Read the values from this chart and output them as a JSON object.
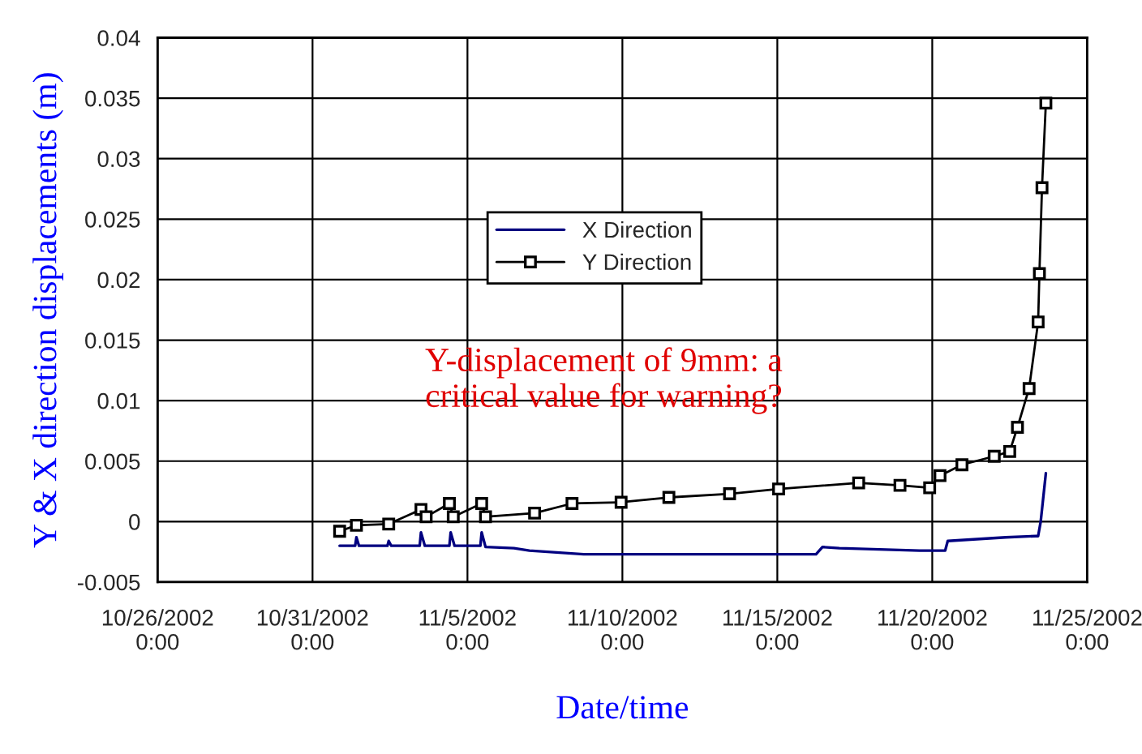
{
  "chart_data": {
    "type": "line",
    "xlabel": "Date/time",
    "ylabel": "Y & X direction displacements (m)",
    "annotations": [
      "Y-displacement of 9mm: a\ncritical value for warning?"
    ],
    "xlim": [
      "2002-10-26",
      "2002-11-25"
    ],
    "xticks": [
      {
        "value": "2002-10-26",
        "label": "10/26/2002\n0:00"
      },
      {
        "value": "2002-10-31",
        "label": "10/31/2002\n0:00"
      },
      {
        "value": "2002-11-05",
        "label": "11/5/2002\n0:00"
      },
      {
        "value": "2002-11-10",
        "label": "11/10/2002\n0:00"
      },
      {
        "value": "2002-11-15",
        "label": "11/15/2002\n0:00"
      },
      {
        "value": "2002-11-20",
        "label": "11/20/2002\n0:00"
      },
      {
        "value": "2002-11-25",
        "label": "11/25/2002\n0:00"
      }
    ],
    "ylim": [
      -0.005,
      0.04
    ],
    "yticks": [
      -0.005,
      0,
      0.005,
      0.01,
      0.015,
      0.02,
      0.025,
      0.03,
      0.035,
      0.04
    ],
    "grid": true,
    "legend": "center",
    "series": [
      {
        "name": "X Direction",
        "color": "#000080",
        "marker": "none",
        "x": [
          "2002-10-31T21:00",
          "2002-11-01T09:00",
          "2002-11-01T10:00",
          "2002-11-01T12:00",
          "2002-11-02T10:00",
          "2002-11-02T11:00",
          "2002-11-02T13:00",
          "2002-11-03T11:00",
          "2002-11-03T12:00",
          "2002-11-03T15:00",
          "2002-11-04T10:00",
          "2002-11-04T11:00",
          "2002-11-04T14:00",
          "2002-11-05T10:00",
          "2002-11-05T11:00",
          "2002-11-05T14:00",
          "2002-11-06T12:00",
          "2002-11-07T00:00",
          "2002-11-08T18:00",
          "2002-11-12T00:00",
          "2002-11-16T06:00",
          "2002-11-16T11:00",
          "2002-11-17T00:00",
          "2002-11-19T14:00",
          "2002-11-20T10:00",
          "2002-11-20T12:00",
          "2002-11-22T09:00",
          "2002-11-23T08:00",
          "2002-11-23T10:00",
          "2002-11-23T12:00",
          "2002-11-23T16:00"
        ],
        "values": [
          -0.002,
          -0.002,
          -0.0013,
          -0.002,
          -0.002,
          -0.0016,
          -0.002,
          -0.002,
          -0.0009,
          -0.002,
          -0.002,
          -0.0009,
          -0.002,
          -0.002,
          -0.0009,
          -0.0021,
          -0.0022,
          -0.0024,
          -0.0027,
          -0.0027,
          -0.0027,
          -0.0021,
          -0.0022,
          -0.0024,
          -0.0024,
          -0.0016,
          -0.0013,
          -0.0012,
          -0.0012,
          0.0,
          0.004
        ]
      },
      {
        "name": "Y Direction",
        "color": "#000000",
        "marker": "square",
        "x": [
          "2002-10-31T21:00",
          "2002-11-01T10:00",
          "2002-11-02T11:00",
          "2002-11-03T12:00",
          "2002-11-03T16:00",
          "2002-11-04T10:00",
          "2002-11-04T13:00",
          "2002-11-05T11:00",
          "2002-11-05T14:00",
          "2002-11-07T04:00",
          "2002-11-08T09:00",
          "2002-11-09T23:00",
          "2002-11-11T12:00",
          "2002-11-13T11:00",
          "2002-11-15T01:00",
          "2002-11-17T15:00",
          "2002-11-18T23:00",
          "2002-11-19T22:00",
          "2002-11-20T06:00",
          "2002-11-20T23:00",
          "2002-11-22T00:00",
          "2002-11-22T12:00",
          "2002-11-22T18:00",
          "2002-11-23T03:00",
          "2002-11-23T10:00",
          "2002-11-23T11:00",
          "2002-11-23T13:00",
          "2002-11-23T16:00"
        ],
        "values": [
          -0.0008,
          -0.0003,
          -0.0002,
          0.001,
          0.0004,
          0.0015,
          0.0004,
          0.0015,
          0.0004,
          0.0007,
          0.0015,
          0.0016,
          0.002,
          0.0023,
          0.0027,
          0.0032,
          0.003,
          0.0028,
          0.0038,
          0.0047,
          0.0054,
          0.0058,
          0.0078,
          0.011,
          0.0165,
          0.0205,
          0.0276,
          0.0346
        ]
      }
    ]
  }
}
